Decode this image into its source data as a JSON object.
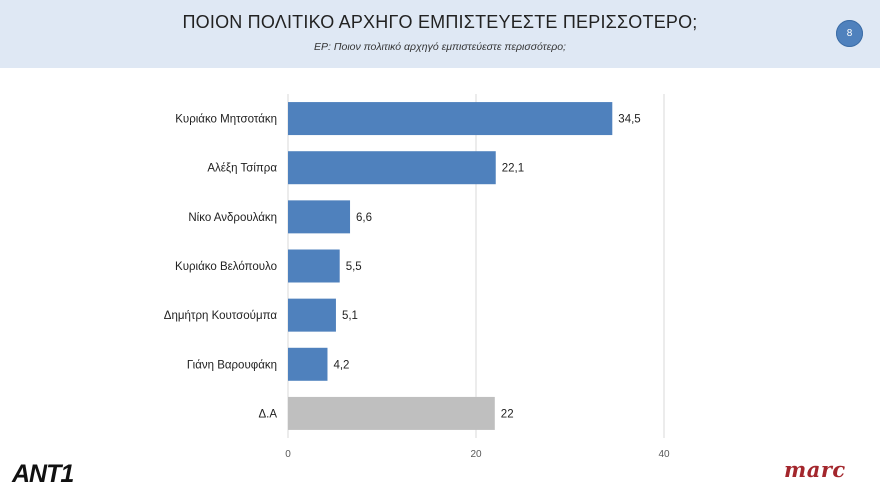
{
  "header": {
    "title": "ΠΟΙΟΝ ΠΟΛΙΤΙΚΟ ΑΡΧΗΓΟ ΕΜΠΙΣΤΕΥΕΣΤΕ ΠΕΡΙΣΣΟΤΕΡΟ;",
    "subtitle": "ΕΡ: Ποιον πολιτικό αρχηγό εμπιστεύεστε περισσότερο;",
    "page_number": "8"
  },
  "logos": {
    "left": "ANT1",
    "right": "marc"
  },
  "colors": {
    "bar": "#4f81bd",
    "bar_other": "#bfbfbf",
    "header_bg": "#dfe8f4"
  },
  "chart_data": {
    "type": "bar",
    "orientation": "horizontal",
    "title": "ΠΟΙΟΝ ΠΟΛΙΤΙΚΟ ΑΡΧΗΓΟ ΕΜΠΙΣΤΕΥΕΣΤΕ ΠΕΡΙΣΣΟΤΕΡΟ;",
    "categories": [
      "Κυριάκο Μητσοτάκη",
      "Αλέξη Τσίπρα",
      "Νίκο Ανδρουλάκη",
      "Κυριάκο Βελόπουλο",
      "Δημήτρη Κουτσούμπα",
      "Γιάνη Βαρουφάκη",
      "Δ.Α"
    ],
    "values": [
      34.5,
      22.1,
      6.6,
      5.5,
      5.1,
      4.2,
      22
    ],
    "value_labels": [
      "34,5",
      "22,1",
      "6,6",
      "5,5",
      "5,1",
      "4,2",
      "22"
    ],
    "xlim": [
      0,
      40
    ],
    "xticks": [
      0,
      20,
      40
    ],
    "xlabel": "",
    "ylabel": "",
    "grid": true,
    "legend": "none"
  }
}
